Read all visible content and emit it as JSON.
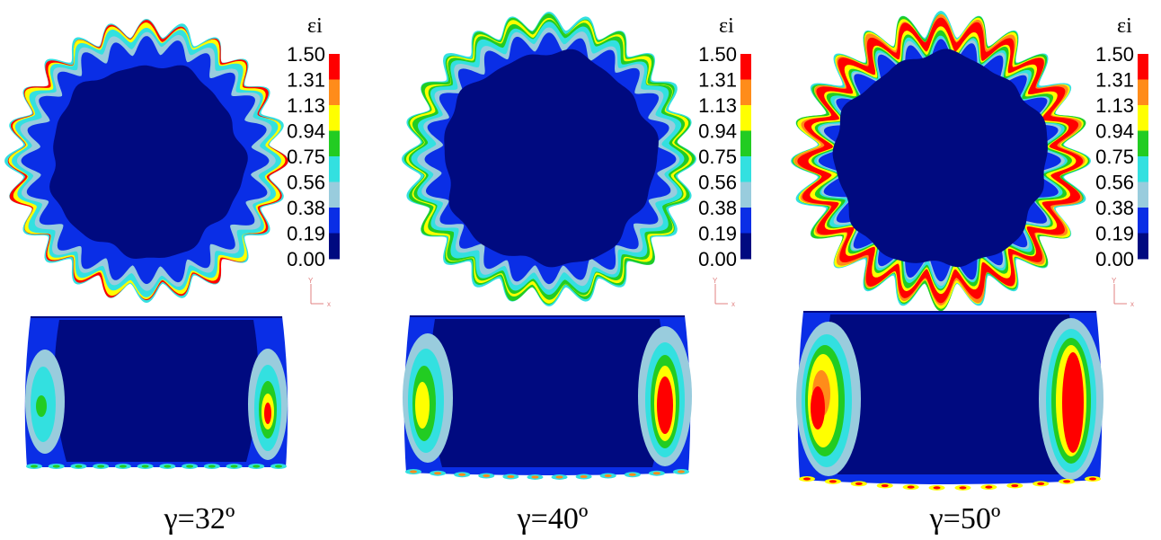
{
  "legend": {
    "symbol": "εi",
    "ticks": [
      "1.50",
      "1.31",
      "1.13",
      "0.94",
      "0.75",
      "0.56",
      "0.38",
      "0.19",
      "0.00"
    ],
    "band_colors": [
      "#ff0000",
      "#ff8c1a",
      "#ffff00",
      "#22cc22",
      "#33e0e0",
      "#99ccdd",
      "#0a2ee6",
      "#000a80"
    ]
  },
  "triad": {
    "y": "Y",
    "x": "x"
  },
  "panels": [
    {
      "caption": "γ=32º",
      "level": 0
    },
    {
      "caption": "γ=40º",
      "level": 1
    },
    {
      "caption": "γ=50º",
      "level": 2
    }
  ]
}
